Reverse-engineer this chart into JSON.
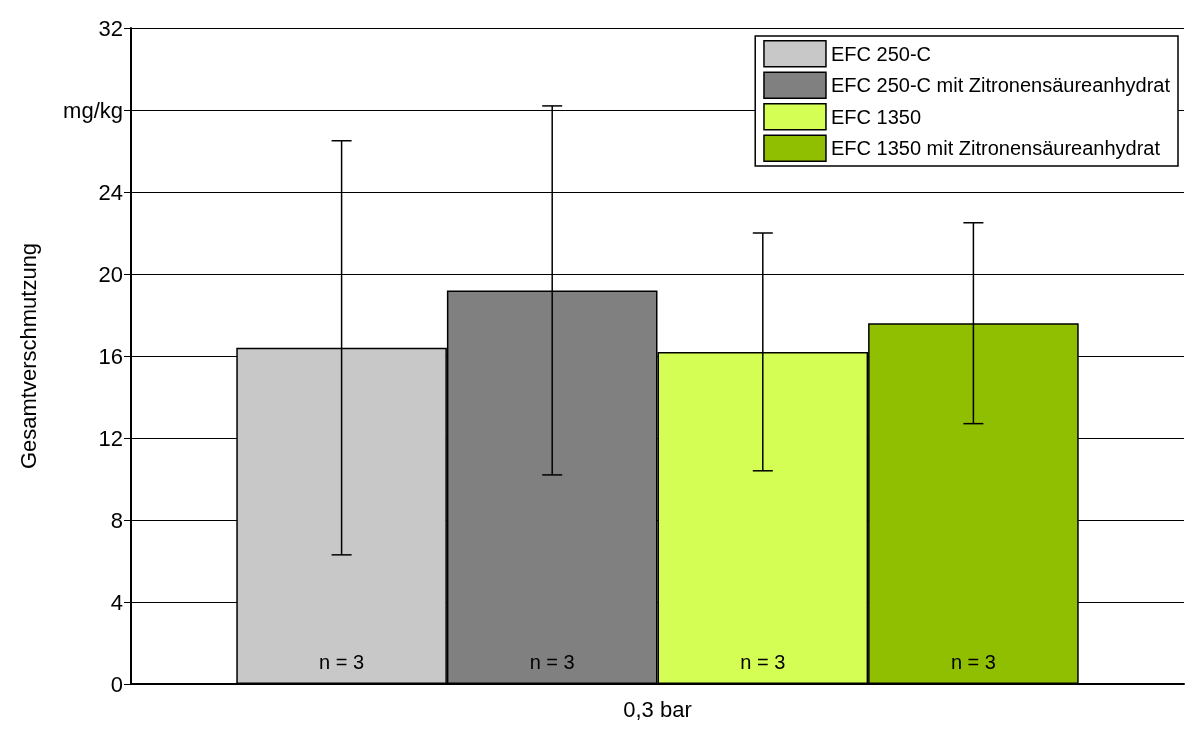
{
  "chart_data": {
    "type": "bar",
    "ylabel": "Gesamtverschmutzung",
    "categories": [
      "0,3 bar"
    ],
    "series": [
      {
        "name": "EFC 250-C",
        "color": "#c8c8c8",
        "values": [
          16.4
        ],
        "errors": [
          10.1
        ]
      },
      {
        "name": "EFC 250-C mit Zitronensäureanhydrat",
        "color": "#808080",
        "values": [
          19.2
        ],
        "errors": [
          9.0
        ]
      },
      {
        "name": "EFC 1350",
        "color": "#d4fe54",
        "values": [
          16.2
        ],
        "errors": [
          5.8
        ]
      },
      {
        "name": "EFC 1350 mit Zitronensäureanhydrat",
        "color": "#90be00",
        "values": [
          17.6
        ],
        "errors": [
          4.9
        ]
      }
    ],
    "ylim": [
      0,
      32
    ],
    "yticks": [
      0,
      4,
      8,
      12,
      16,
      20,
      24,
      {
        "value": 28,
        "label": "mg/kg"
      },
      32
    ],
    "annotations": [
      "n = 3",
      "n = 3",
      "n = 3",
      "n = 3"
    ],
    "grid": "y",
    "legend": "top right"
  }
}
